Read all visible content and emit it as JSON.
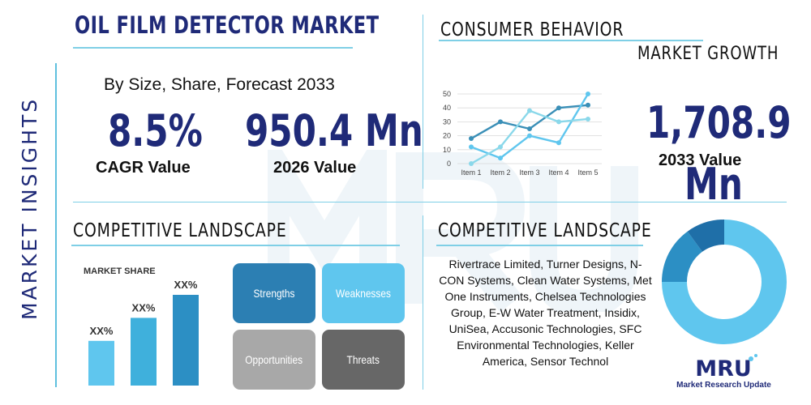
{
  "side_title": "MARKET INSIGHTS",
  "header": {
    "title": "OIL FILM DETECTOR MARKET",
    "subtitle": "By Size, Share, Forecast 2033"
  },
  "stats": {
    "cagr_value": "8.5%",
    "cagr_label": "CAGR Value",
    "value_2026": "950.4 Mn",
    "value_2026_label": "2026 Value",
    "value_2033": "1,708.9",
    "value_2033_unit": "Mn",
    "value_2033_label": "2033 Value"
  },
  "sections": {
    "consumer_behavior": "CONSUMER BEHAVIOR",
    "market_growth": "MARKET GROWTH",
    "competitive_landscape_left": "COMPETITIVE LANDSCAPE",
    "competitive_landscape_right": "COMPETITIVE LANDSCAPE"
  },
  "swot": {
    "strengths": "Strengths",
    "weaknesses": "Weaknesses",
    "opportunities": "Opportunities",
    "threats": "Threats"
  },
  "companies": "Rivertrace Limited, Turner Designs, N-CON Systems, Clean Water Systems, Met One Instruments, Chelsea Technologies Group, E-W Water Treatment, Insidix, UniSea, Accusonic Technologies, SFC Environmental Technologies, Keller America, Sensor Technol",
  "logo": {
    "mark": "MRU",
    "text": "Market Research Update"
  },
  "colors": {
    "navy": "#1f2a78",
    "accent": "#7fcfe6",
    "dark_blue": "#2c7fb3",
    "light_blue": "#5fc6ee"
  },
  "chart_data": [
    {
      "type": "line",
      "categories": [
        "Item 1",
        "Item 2",
        "Item 3",
        "Item 4",
        "Item 5"
      ],
      "ylim": [
        0,
        50
      ],
      "yticks": [
        0,
        10,
        20,
        30,
        40,
        50
      ],
      "grid": true,
      "series": [
        {
          "color": "#3a8fb7",
          "values": [
            18,
            30,
            25,
            40,
            42
          ]
        },
        {
          "color": "#5fc6ee",
          "values": [
            12,
            4,
            20,
            15,
            50
          ]
        },
        {
          "color": "#8ad8ea",
          "values": [
            0,
            12,
            38,
            30,
            32
          ]
        }
      ]
    },
    {
      "type": "bar",
      "title": "MARKET SHARE",
      "categories": [
        "",
        "",
        ""
      ],
      "values": [
        33,
        50,
        67
      ],
      "data_labels": [
        "XX%",
        "XX%",
        "XX%"
      ],
      "colors": [
        "#5fc6ee",
        "#3fb0dc",
        "#2c8fc4"
      ]
    },
    {
      "type": "pie",
      "style": "donut",
      "values": [
        75,
        15,
        10
      ],
      "colors": [
        "#5fc6ee",
        "#2c8fc4",
        "#1f6fa8"
      ]
    }
  ]
}
